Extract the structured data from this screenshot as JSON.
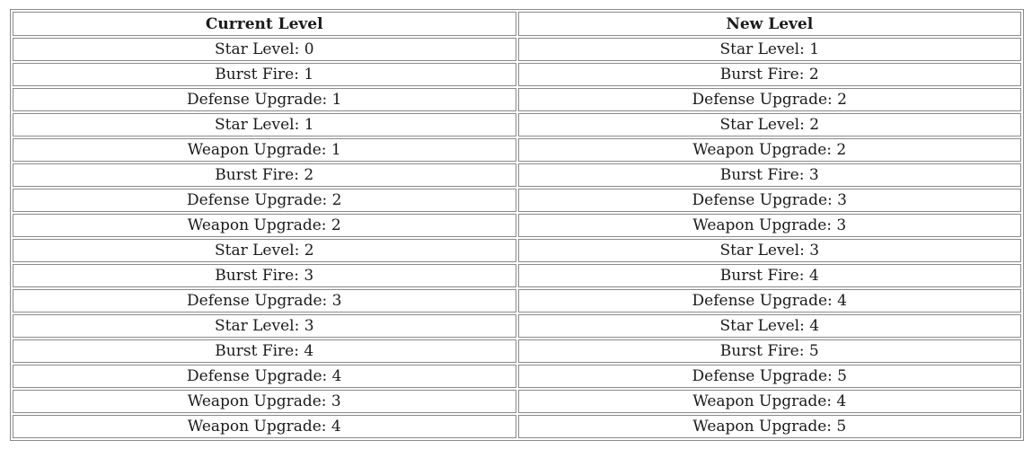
{
  "table": {
    "headers": [
      "Current Level",
      "New Level"
    ],
    "rows": [
      [
        "Star Level: 0",
        "Star Level: 1"
      ],
      [
        "Burst Fire: 1",
        "Burst Fire: 2"
      ],
      [
        "Defense Upgrade: 1",
        "Defense Upgrade: 2"
      ],
      [
        "Star Level: 1",
        "Star Level: 2"
      ],
      [
        "Weapon Upgrade: 1",
        "Weapon Upgrade: 2"
      ],
      [
        "Burst Fire: 2",
        "Burst Fire: 3"
      ],
      [
        "Defense Upgrade: 2",
        "Defense Upgrade: 3"
      ],
      [
        "Weapon Upgrade: 2",
        "Weapon Upgrade: 3"
      ],
      [
        "Star Level: 2",
        "Star Level: 3"
      ],
      [
        "Burst Fire: 3",
        "Burst Fire: 4"
      ],
      [
        "Defense Upgrade: 3",
        "Defense Upgrade: 4"
      ],
      [
        "Star Level: 3",
        "Star Level: 4"
      ],
      [
        "Burst Fire: 4",
        "Burst Fire: 5"
      ],
      [
        "Defense Upgrade: 4",
        "Defense Upgrade: 5"
      ],
      [
        "Weapon Upgrade: 3",
        "Weapon Upgrade: 4"
      ],
      [
        "Weapon Upgrade: 4",
        "Weapon Upgrade: 5"
      ]
    ]
  }
}
